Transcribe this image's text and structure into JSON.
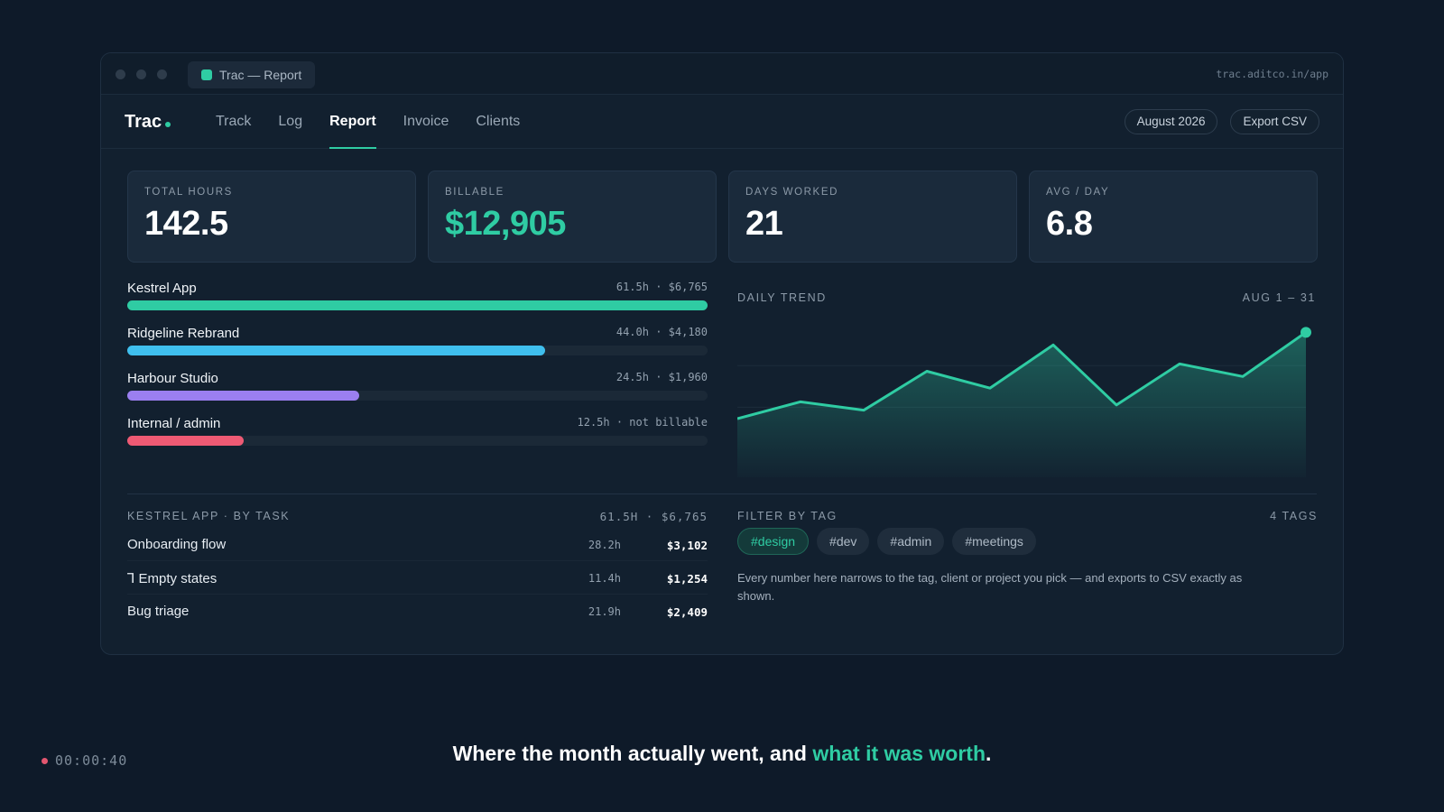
{
  "window": {
    "tab_title": "Trac — Report",
    "url": "trac.aditco.in/app"
  },
  "brand": {
    "name": "Trac"
  },
  "nav": {
    "items": [
      "Track",
      "Log",
      "Report",
      "Invoice",
      "Clients"
    ],
    "active": "Report",
    "month_button": "August 2026",
    "export_button": "Export CSV"
  },
  "stats": [
    {
      "label": "TOTAL HOURS",
      "value": "142.5"
    },
    {
      "label": "BILLABLE",
      "value": "$12,905"
    },
    {
      "label": "DAYS WORKED",
      "value": "21"
    },
    {
      "label": "AVG / DAY",
      "value": "6.8"
    }
  ],
  "projects": [
    {
      "name": "Kestrel App",
      "meta": "61.5h · $6,765",
      "fraction": 1.0,
      "color": "#2fcca3"
    },
    {
      "name": "Ridgeline Rebrand",
      "meta": "44.0h · $4,180",
      "fraction": 0.72,
      "color": "#3fbfee"
    },
    {
      "name": "Harbour Studio",
      "meta": "24.5h · $1,960",
      "fraction": 0.4,
      "color": "#9b7ff0"
    },
    {
      "name": "Internal / admin",
      "meta": "12.5h · not billable",
      "fraction": 0.2,
      "color": "#ee5a74"
    }
  ],
  "trend": {
    "label": "DAILY TREND",
    "range": "AUG 1 – 31",
    "accent": "#2fcca3"
  },
  "chart_data": {
    "type": "area",
    "title": "DAILY TREND",
    "xlabel": "",
    "ylabel": "",
    "series": [
      {
        "values": [
          3.0,
          4.6,
          3.8,
          7.5,
          5.9,
          10.0,
          4.3,
          8.2,
          7.0,
          11.2
        ]
      }
    ],
    "ylim": [
      0,
      12
    ],
    "grid": true
  },
  "tasks": {
    "title": "KESTREL APP · BY TASK",
    "total": "61.5H · $6,765",
    "rows": [
      {
        "name": "Onboarding flow",
        "hours": "28.2h",
        "amount": "$3,102"
      },
      {
        "name": "Ꞁ Empty states",
        "hours": "11.4h",
        "amount": "$1,254"
      },
      {
        "name": "Bug triage",
        "hours": "21.9h",
        "amount": "$2,409"
      }
    ]
  },
  "filter": {
    "title": "FILTER BY TAG",
    "count": "4 TAGS",
    "tags": [
      "#design",
      "#dev",
      "#admin",
      "#meetings"
    ],
    "active_tag": "#design",
    "description": "Every number here narrows to the tag, client or project you pick — and exports to CSV exactly as shown."
  },
  "footer": {
    "timecode": "00:00:40",
    "caption_start": "Where the month actually went, and ",
    "caption_highlight": "what it was worth",
    "caption_end": "."
  }
}
